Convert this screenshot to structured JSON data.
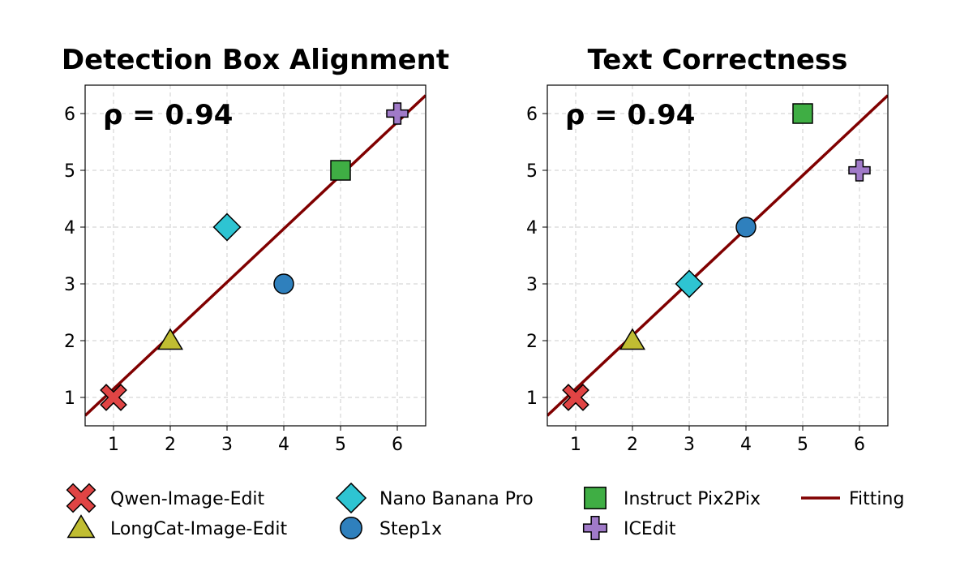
{
  "colors": {
    "qwen": "#e04444",
    "longcat": "#c0bd32",
    "nano": "#2ec4d2",
    "step": "#2f80bd",
    "instruct": "#3fae44",
    "icedit": "#a07ac8",
    "fitting": "#800000",
    "grid": "#cccccc"
  },
  "legend": [
    {
      "label": "Qwen-Image-Edit",
      "marker": "x-marker",
      "color": "#e04444"
    },
    {
      "label": "LongCat-Image-Edit",
      "marker": "triangle-marker",
      "color": "#c0bd32"
    },
    {
      "label": "Nano Banana Pro",
      "marker": "diamond-marker",
      "color": "#2ec4d2"
    },
    {
      "label": "Step1x",
      "marker": "circle-marker",
      "color": "#2f80bd"
    },
    {
      "label": "Instruct Pix2Pix",
      "marker": "square-marker",
      "color": "#3fae44"
    },
    {
      "label": "ICEdit",
      "marker": "plus-marker",
      "color": "#a07ac8"
    },
    {
      "label": "Fitting",
      "marker": "line-marker",
      "color": "#800000"
    }
  ],
  "chart_data": [
    {
      "type": "scatter",
      "title": "Detection Box Alignment",
      "annotation": "ρ = 0.94",
      "xlabel": "",
      "ylabel": "",
      "xlim": [
        0.5,
        6.5
      ],
      "ylim": [
        0.5,
        6.5
      ],
      "xticks": [
        "1",
        "2",
        "3",
        "4",
        "5",
        "6"
      ],
      "yticks": [
        "1",
        "2",
        "3",
        "4",
        "5",
        "6"
      ],
      "grid": true,
      "series": [
        {
          "name": "Qwen-Image-Edit",
          "x": 1,
          "y": 1
        },
        {
          "name": "LongCat-Image-Edit",
          "x": 2,
          "y": 2
        },
        {
          "name": "Nano Banana Pro",
          "x": 3,
          "y": 4
        },
        {
          "name": "Step1x",
          "x": 4,
          "y": 3
        },
        {
          "name": "Instruct Pix2Pix",
          "x": 5,
          "y": 5
        },
        {
          "name": "ICEdit",
          "x": 6,
          "y": 6
        }
      ],
      "fit": {
        "name": "Fitting",
        "slope": 0.94,
        "intercept": 0.21
      }
    },
    {
      "type": "scatter",
      "title": "Text Correctness",
      "annotation": "ρ = 0.94",
      "xlabel": "",
      "ylabel": "",
      "xlim": [
        0.5,
        6.5
      ],
      "ylim": [
        0.5,
        6.5
      ],
      "xticks": [
        "1",
        "2",
        "3",
        "4",
        "5",
        "6"
      ],
      "yticks": [
        "1",
        "2",
        "3",
        "4",
        "5",
        "6"
      ],
      "grid": true,
      "series": [
        {
          "name": "Qwen-Image-Edit",
          "x": 1,
          "y": 1
        },
        {
          "name": "LongCat-Image-Edit",
          "x": 2,
          "y": 2
        },
        {
          "name": "Nano Banana Pro",
          "x": 3,
          "y": 3
        },
        {
          "name": "Step1x",
          "x": 4,
          "y": 4
        },
        {
          "name": "Instruct Pix2Pix",
          "x": 5,
          "y": 6
        },
        {
          "name": "ICEdit",
          "x": 6,
          "y": 5
        }
      ],
      "fit": {
        "name": "Fitting",
        "slope": 0.94,
        "intercept": 0.21
      }
    }
  ]
}
